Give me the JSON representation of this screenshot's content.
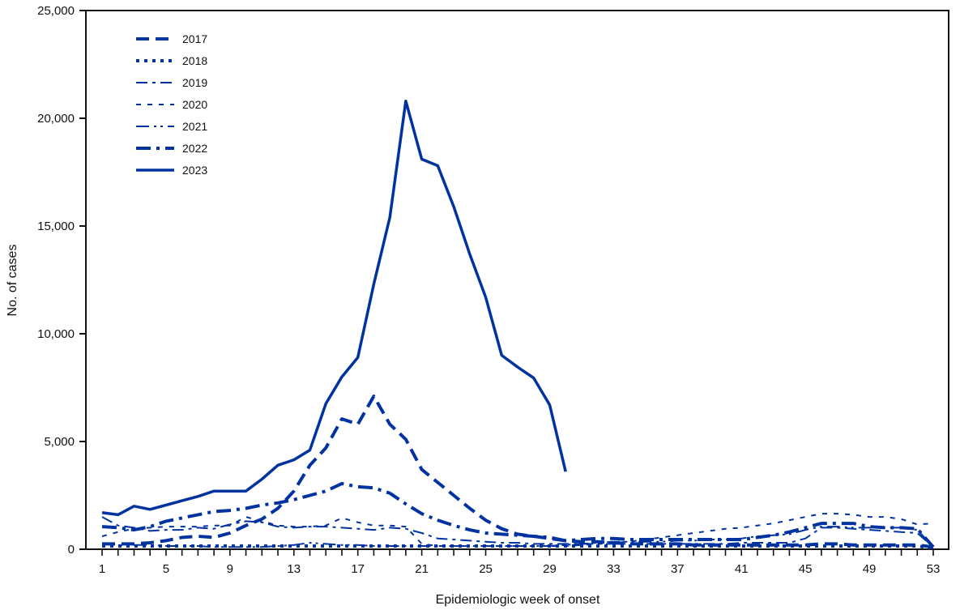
{
  "chart_data": {
    "type": "line",
    "title": "",
    "xlabel": "Epidemiologic week of onset",
    "ylabel": "No. of cases",
    "xlim": [
      1,
      53
    ],
    "ylim": [
      0,
      25000
    ],
    "x_ticks": [
      1,
      5,
      9,
      13,
      17,
      21,
      25,
      29,
      33,
      37,
      41,
      45,
      49,
      53
    ],
    "y_ticks": [
      0,
      5000,
      10000,
      15000,
      20000,
      25000
    ],
    "y_tick_labels": [
      "0",
      "5,000",
      "10,000",
      "15,000",
      "20,000",
      "25,000"
    ],
    "grid": false,
    "legend_position": "upper-left",
    "line_color": "#0033a0",
    "series": [
      {
        "name": "2017",
        "style": "dash-long-thick",
        "x": [
          1,
          2,
          3,
          4,
          5,
          6,
          7,
          8,
          9,
          10,
          11,
          12,
          13,
          14,
          15,
          16,
          17,
          18,
          19,
          20,
          21,
          22,
          23,
          24,
          25,
          26,
          27,
          28,
          29,
          30,
          31,
          32,
          33,
          34,
          35,
          36,
          37,
          38,
          39,
          40,
          41,
          42,
          43,
          44,
          45,
          46,
          47,
          48,
          49,
          50,
          51,
          52,
          53
        ],
        "values": [
          250,
          250,
          250,
          300,
          400,
          550,
          600,
          550,
          750,
          1100,
          1400,
          1900,
          2700,
          3900,
          4700,
          6050,
          5800,
          7100,
          5800,
          5100,
          3700,
          3100,
          2500,
          1900,
          1350,
          950,
          700,
          600,
          500,
          400,
          350,
          350,
          300,
          250,
          250,
          250,
          250,
          200,
          200,
          200,
          200,
          200,
          200,
          200,
          200,
          250,
          250,
          200,
          200,
          200,
          200,
          200,
          100
        ]
      },
      {
        "name": "2018",
        "style": "dotted-thick",
        "x": [
          1,
          2,
          3,
          4,
          5,
          6,
          7,
          8,
          9,
          10,
          11,
          12,
          13,
          14,
          15,
          16,
          17,
          18,
          19,
          20,
          21,
          22,
          23,
          24,
          25,
          26,
          27,
          28,
          29,
          30,
          31,
          32,
          33,
          34,
          35,
          36,
          37,
          38,
          39,
          40,
          41,
          42,
          43,
          44,
          45,
          46,
          47,
          48,
          49,
          50,
          51,
          52,
          53
        ],
        "values": [
          150,
          150,
          150,
          150,
          150,
          150,
          150,
          150,
          150,
          150,
          150,
          150,
          150,
          150,
          150,
          150,
          150,
          150,
          150,
          150,
          150,
          150,
          150,
          150,
          150,
          150,
          150,
          150,
          150,
          150,
          150,
          150,
          150,
          150,
          150,
          150,
          150,
          150,
          150,
          150,
          150,
          150,
          150,
          150,
          150,
          150,
          150,
          150,
          150,
          150,
          150,
          150,
          50
        ]
      },
      {
        "name": "2019",
        "style": "long-dash-short-dash",
        "x": [
          1,
          2,
          3,
          4,
          5,
          6,
          7,
          8,
          9,
          10,
          11,
          12,
          13,
          14,
          15,
          16,
          17,
          18,
          19,
          20,
          21,
          22,
          23,
          24,
          25,
          26,
          27,
          28,
          29,
          30,
          31,
          32,
          33,
          34,
          35,
          36,
          37,
          38,
          39,
          40,
          41,
          42,
          43,
          44,
          45,
          46,
          47,
          48,
          49,
          50,
          51,
          52,
          53
        ],
        "values": [
          1500,
          1100,
          1000,
          850,
          900,
          900,
          1000,
          950,
          1150,
          1300,
          1250,
          1050,
          1000,
          1050,
          1050,
          1000,
          950,
          900,
          1000,
          950,
          750,
          500,
          450,
          400,
          350,
          300,
          300,
          250,
          250,
          250,
          250,
          250,
          250,
          250,
          250,
          250,
          250,
          250,
          250,
          250,
          300,
          300,
          300,
          300,
          500,
          1000,
          1000,
          950,
          900,
          850,
          800,
          750,
          100
        ]
      },
      {
        "name": "2020",
        "style": "short-dash",
        "x": [
          1,
          2,
          3,
          4,
          5,
          6,
          7,
          8,
          9,
          10,
          11,
          12,
          13,
          14,
          15,
          16,
          17,
          18,
          19,
          20,
          21,
          22,
          23,
          24,
          25,
          26,
          27,
          28,
          29,
          30,
          31,
          32,
          33,
          34,
          35,
          36,
          37,
          38,
          39,
          40,
          41,
          42,
          43,
          44,
          45,
          46,
          47,
          48,
          49,
          50,
          51,
          52,
          53
        ],
        "values": [
          600,
          800,
          950,
          1000,
          1050,
          1050,
          1050,
          1100,
          1100,
          1500,
          1300,
          1100,
          1050,
          1050,
          1100,
          1450,
          1250,
          1100,
          1100,
          1050,
          250,
          150,
          150,
          150,
          150,
          150,
          150,
          150,
          150,
          150,
          200,
          250,
          300,
          350,
          450,
          550,
          650,
          750,
          850,
          950,
          1000,
          1100,
          1200,
          1350,
          1500,
          1650,
          1650,
          1600,
          1500,
          1500,
          1400,
          1150,
          1200
        ]
      },
      {
        "name": "2021",
        "style": "long-dash-dot-dot",
        "x": [
          1,
          2,
          3,
          4,
          5,
          6,
          7,
          8,
          9,
          10,
          11,
          12,
          13,
          14,
          15,
          16,
          17,
          18,
          19,
          20,
          21,
          22,
          23,
          24,
          25,
          26,
          27,
          28,
          29,
          30,
          31,
          32,
          33,
          34,
          35,
          36,
          37,
          38,
          39,
          40,
          41,
          42,
          43,
          44,
          45,
          46,
          47,
          48,
          49,
          50,
          51,
          52,
          53
        ],
        "values": [
          250,
          200,
          200,
          200,
          150,
          150,
          150,
          100,
          100,
          100,
          100,
          150,
          200,
          300,
          250,
          200,
          200,
          150,
          150,
          150,
          150,
          150,
          150,
          150,
          150,
          150,
          150,
          150,
          150,
          200,
          250,
          300,
          350,
          350,
          350,
          350,
          400,
          400,
          450,
          450,
          500,
          600,
          650,
          700,
          900,
          1050,
          1050,
          1000,
          1000,
          1000,
          1000,
          900,
          100
        ]
      },
      {
        "name": "2022",
        "style": "dash-dot-thick",
        "x": [
          1,
          2,
          3,
          4,
          5,
          6,
          7,
          8,
          9,
          10,
          11,
          12,
          13,
          14,
          15,
          16,
          17,
          18,
          19,
          20,
          21,
          22,
          23,
          24,
          25,
          26,
          27,
          28,
          29,
          30,
          31,
          32,
          33,
          34,
          35,
          36,
          37,
          38,
          39,
          40,
          41,
          42,
          43,
          44,
          45,
          46,
          47,
          48,
          49,
          50,
          51,
          52,
          53
        ],
        "values": [
          1050,
          1000,
          900,
          1050,
          1300,
          1450,
          1600,
          1750,
          1800,
          1900,
          2050,
          2150,
          2300,
          2500,
          2700,
          3050,
          2900,
          2850,
          2600,
          2100,
          1650,
          1350,
          1100,
          900,
          750,
          700,
          650,
          600,
          550,
          400,
          450,
          500,
          500,
          450,
          450,
          450,
          450,
          450,
          450,
          450,
          450,
          550,
          650,
          800,
          1000,
          1200,
          1200,
          1200,
          1050,
          1000,
          1000,
          950,
          100
        ]
      },
      {
        "name": "2023",
        "style": "solid-thick",
        "x": [
          1,
          2,
          3,
          4,
          5,
          6,
          7,
          8,
          9,
          10,
          11,
          12,
          13,
          14,
          15,
          16,
          17,
          18,
          19,
          20,
          21,
          22,
          23,
          24,
          25,
          26,
          27,
          28,
          29,
          30
        ],
        "values": [
          1700,
          1600,
          2000,
          1850,
          2050,
          2250,
          2450,
          2700,
          2700,
          2700,
          3250,
          3900,
          4150,
          4600,
          6750,
          8000,
          8900,
          12300,
          15400,
          20800,
          18100,
          17800,
          15900,
          13700,
          11700,
          9000,
          8450,
          7950,
          6700,
          3600
        ]
      }
    ]
  }
}
